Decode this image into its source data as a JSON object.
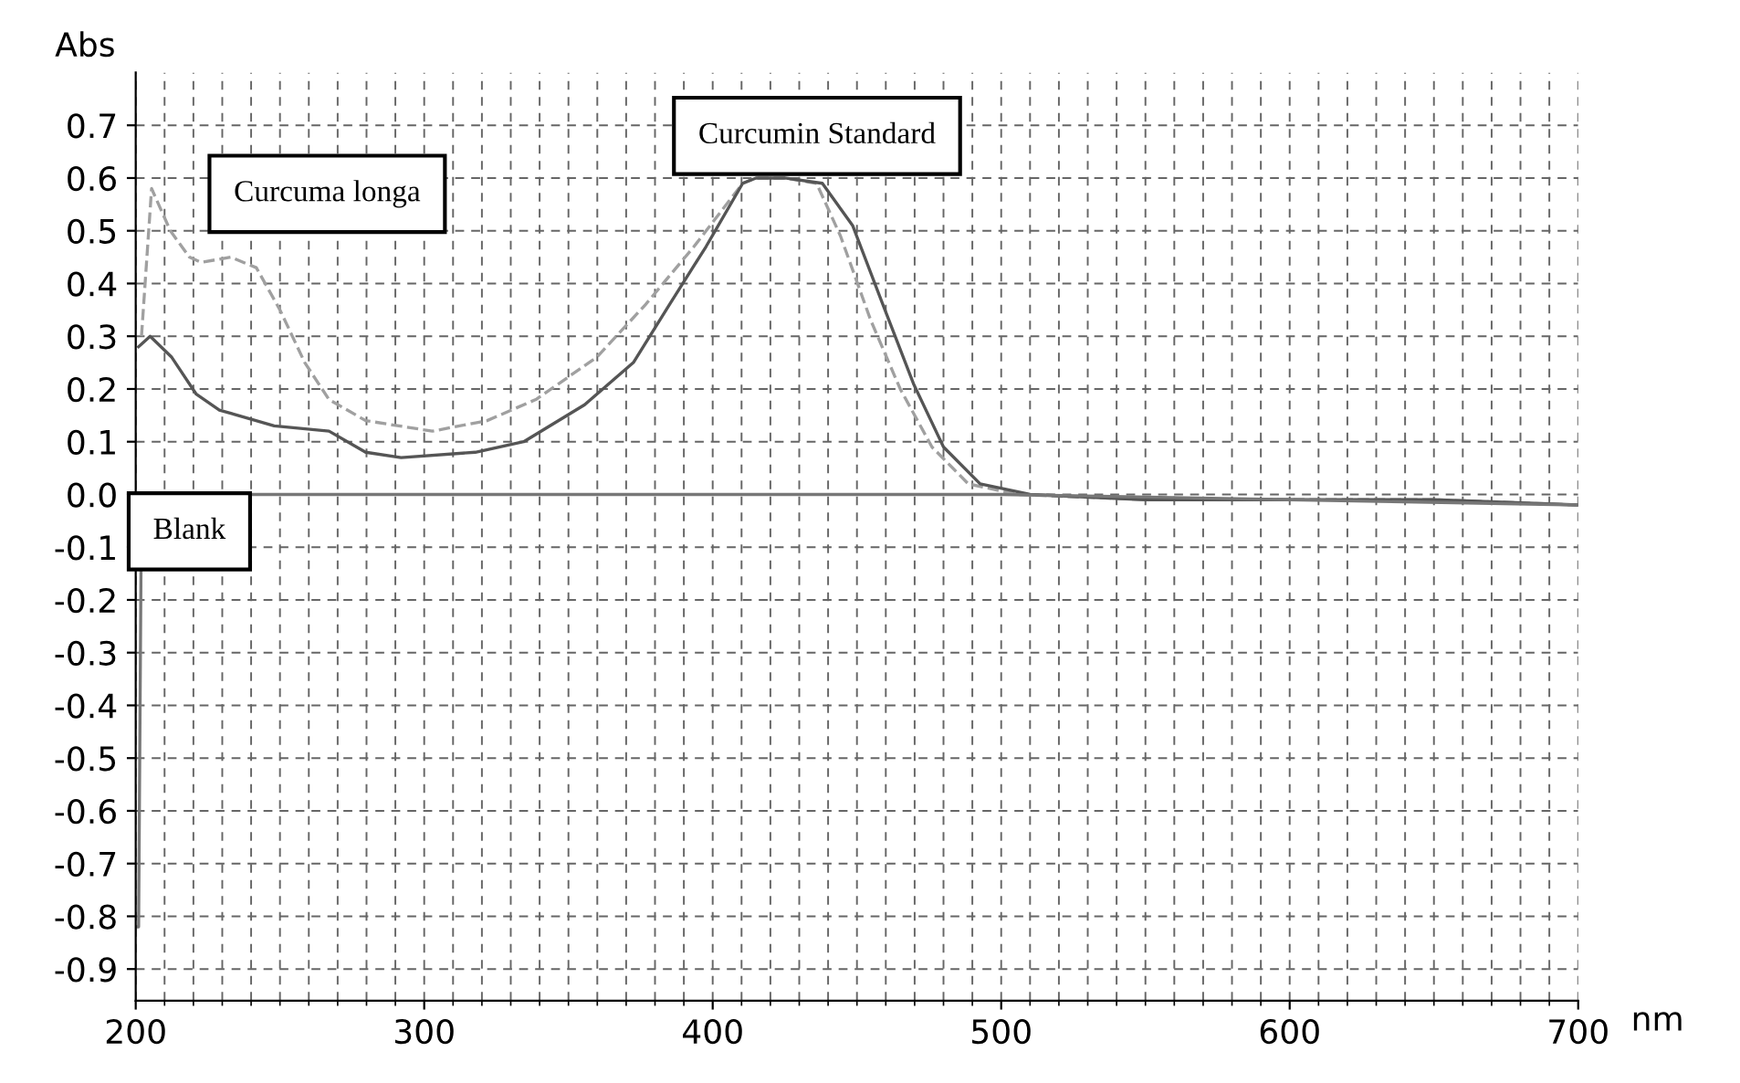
{
  "chart_data": {
    "type": "line",
    "xlabel": "nm",
    "ylabel": "Abs",
    "xlim": [
      200,
      700
    ],
    "ylim": [
      -0.96,
      0.8
    ],
    "xticks": [
      200,
      300,
      400,
      500,
      600,
      700
    ],
    "yticks": [
      {
        "value": -0.9,
        "label": "-0.9"
      },
      {
        "value": -0.8,
        "label": "-0.8"
      },
      {
        "value": -0.7,
        "label": "-0.7"
      },
      {
        "value": -0.6,
        "label": "-0.6"
      },
      {
        "value": -0.5,
        "label": "-0.5"
      },
      {
        "value": -0.4,
        "label": "-0.4"
      },
      {
        "value": -0.3,
        "label": "-0.3"
      },
      {
        "value": -0.2,
        "label": "-0.2"
      },
      {
        "value": -0.1,
        "label": "-0.1"
      },
      {
        "value": 0.0,
        "label": "0.0"
      },
      {
        "value": 0.1,
        "label": "0.1"
      },
      {
        "value": 0.2,
        "label": "0.2"
      },
      {
        "value": 0.3,
        "label": "0.3"
      },
      {
        "value": 0.4,
        "label": "0.4"
      },
      {
        "value": 0.5,
        "label": "0.5"
      },
      {
        "value": 0.6,
        "label": "0.6"
      },
      {
        "value": 0.7,
        "label": "0.7"
      }
    ],
    "grid": true,
    "line_style": "solid",
    "series": [
      {
        "name": "Curcuma longa",
        "color": "#a0a0a0",
        "line_style": "dashed",
        "x": [
          202,
          205.5,
          212,
          218.6,
          222.7,
          233,
          241.8,
          250,
          258.6,
          267,
          279.7,
          302.8,
          321.8,
          338.7,
          359.8,
          376.7,
          393.5,
          410.4,
          415,
          425,
          436,
          444.3,
          454.8,
          465,
          476,
          488.6,
          505.7,
          550,
          600,
          650,
          700
        ],
        "values": [
          0.3,
          0.58,
          0.5,
          0.45,
          0.44,
          0.45,
          0.43,
          0.35,
          0.25,
          0.18,
          0.14,
          0.12,
          0.14,
          0.18,
          0.26,
          0.36,
          0.47,
          0.59,
          0.6,
          0.6,
          0.59,
          0.49,
          0.33,
          0.2,
          0.09,
          0.02,
          0.0,
          -0.01,
          -0.01,
          -0.01,
          -0.02
        ]
      },
      {
        "name": "Curcumin Standard",
        "color": "#555555",
        "x": [
          201,
          205,
          212.5,
          221,
          229,
          248,
          267,
          279.7,
          292,
          317.7,
          334.5,
          355.6,
          372.5,
          385,
          397.7,
          410.4,
          415,
          425,
          438,
          448.5,
          459,
          469.6,
          480,
          492.7,
          510,
          550,
          600,
          650,
          700
        ],
        "values": [
          0.28,
          0.3,
          0.26,
          0.19,
          0.16,
          0.13,
          0.12,
          0.08,
          0.07,
          0.08,
          0.1,
          0.17,
          0.25,
          0.36,
          0.47,
          0.59,
          0.6,
          0.6,
          0.59,
          0.51,
          0.36,
          0.21,
          0.09,
          0.02,
          0.0,
          -0.01,
          -0.01,
          -0.01,
          -0.02
        ]
      },
      {
        "name": "Blank",
        "color": "#777777",
        "x": [
          200,
          201,
          202,
          250,
          300,
          400,
          500,
          600,
          700
        ],
        "values": [
          -0.82,
          -0.82,
          0.0,
          0.0,
          0.0,
          0.0,
          0.0,
          -0.01,
          -0.02
        ]
      }
    ]
  }
}
